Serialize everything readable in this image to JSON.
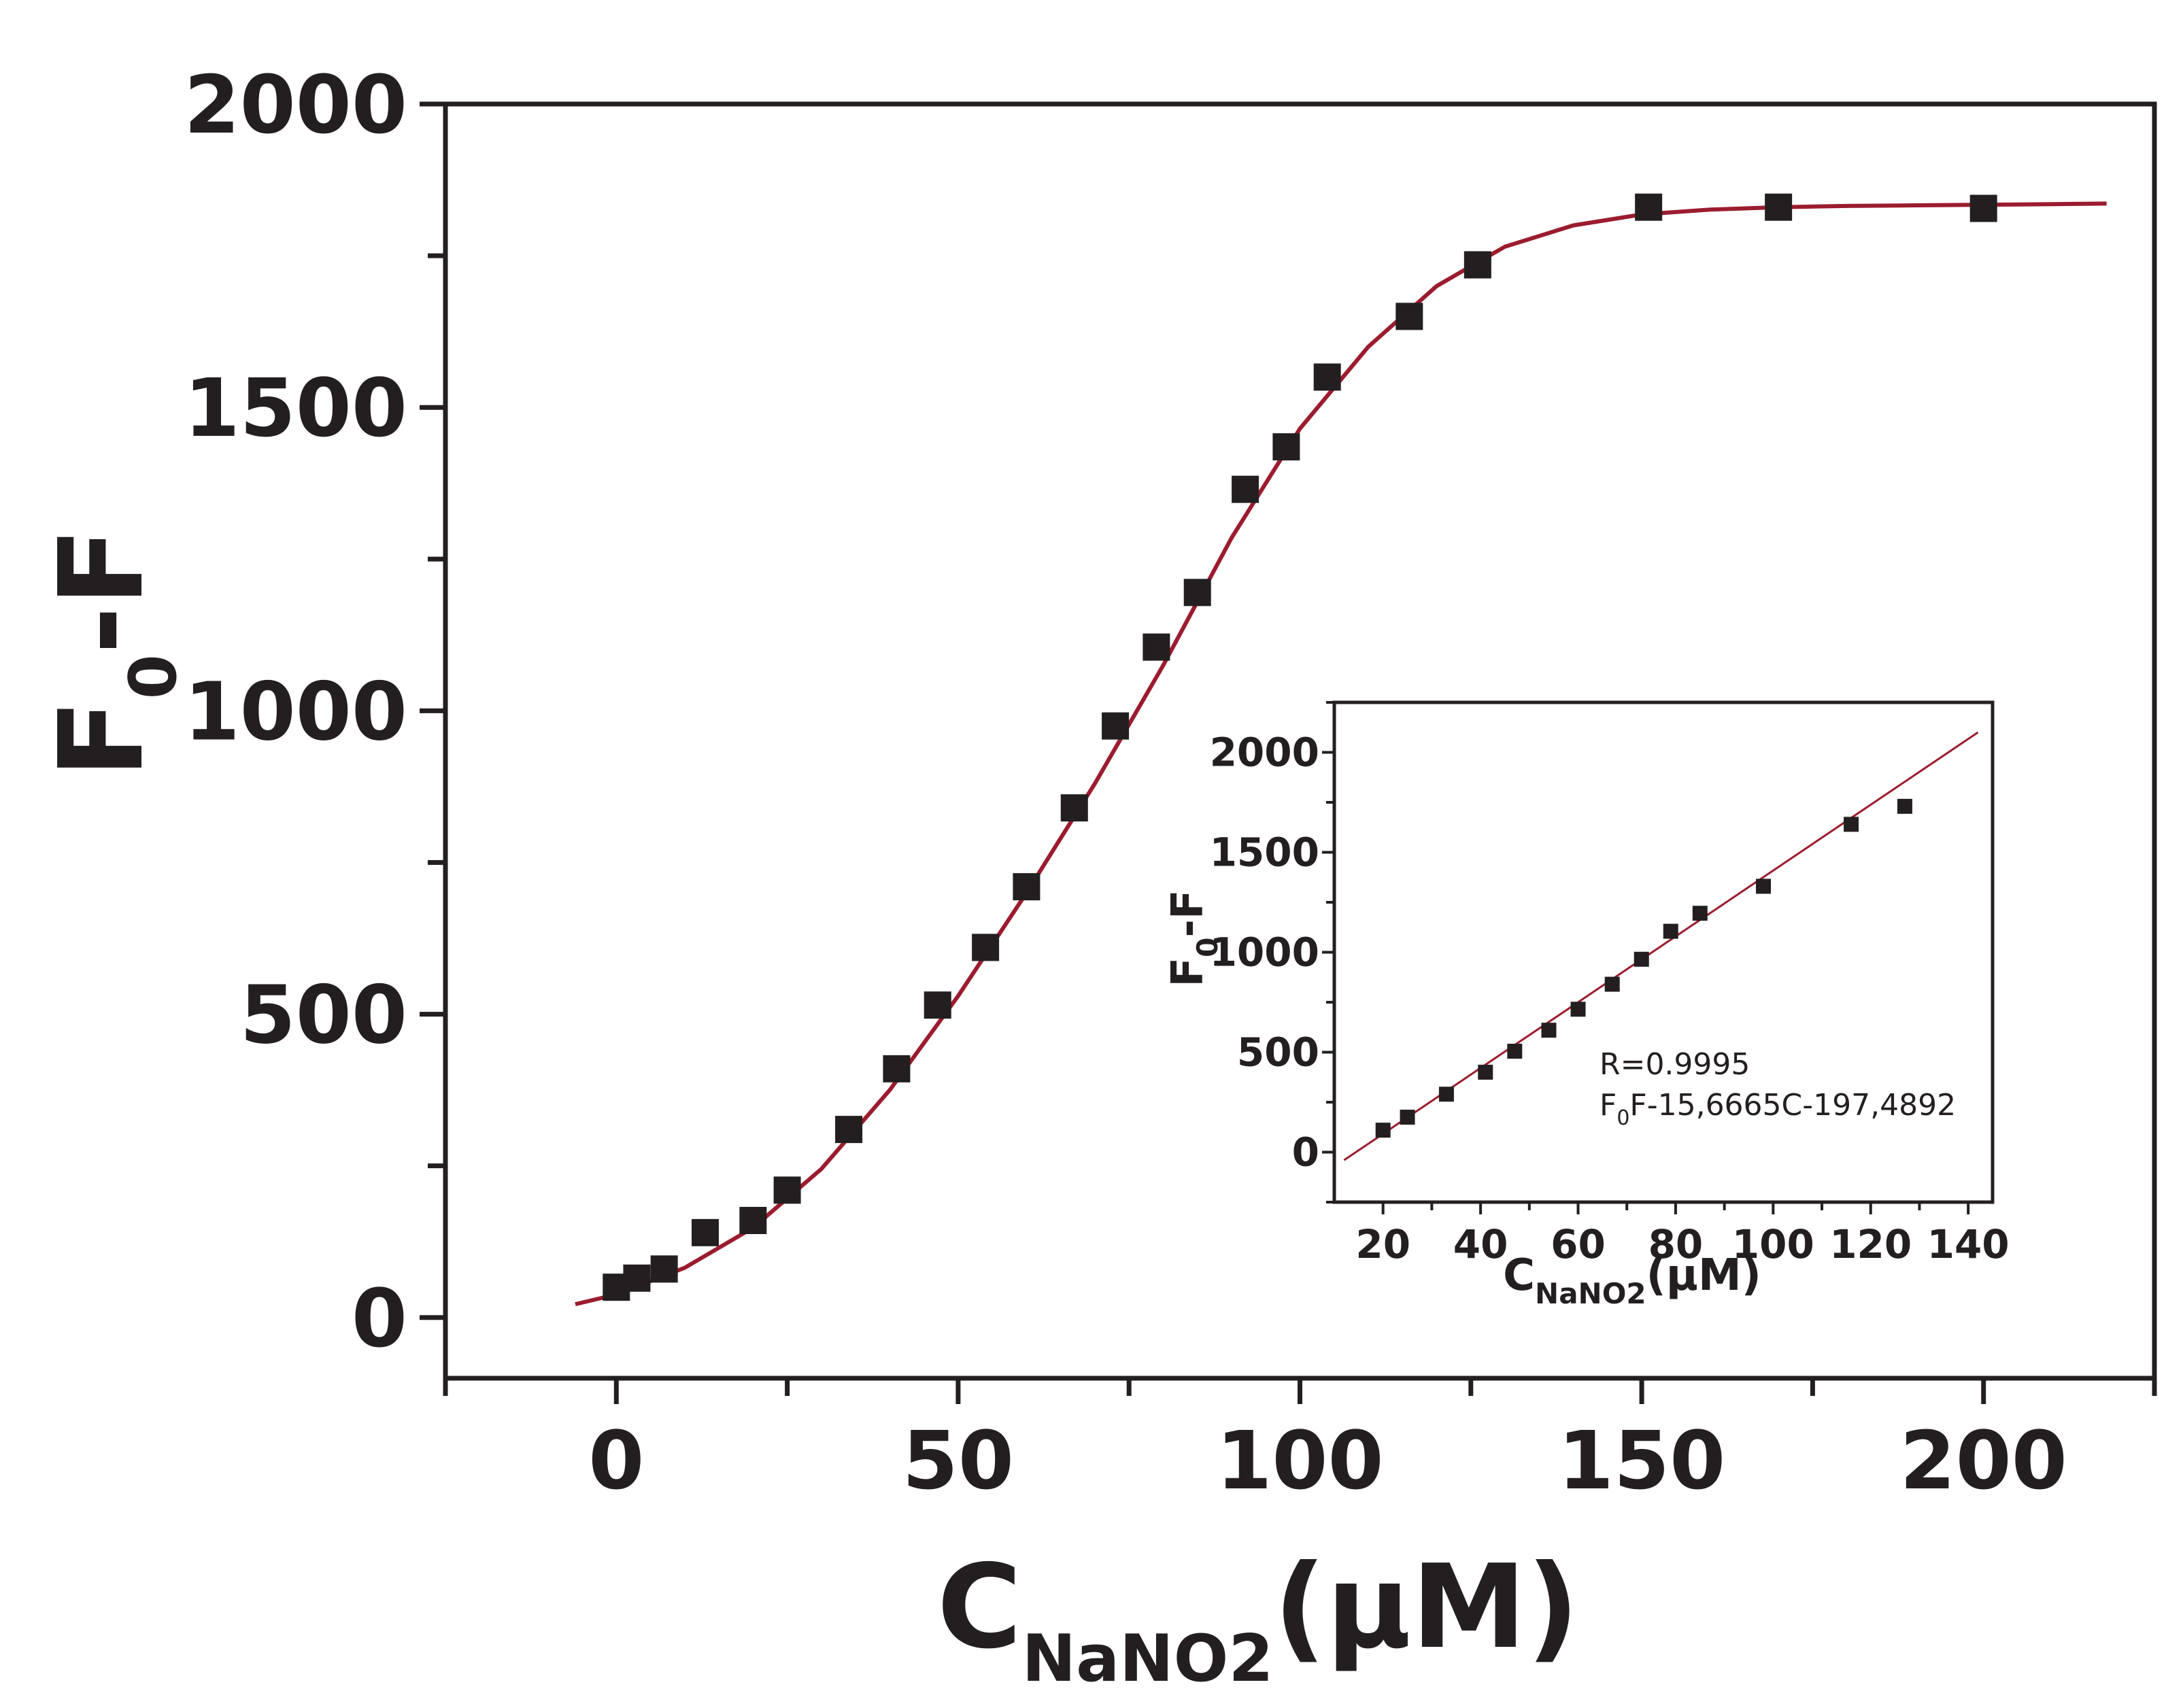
{
  "colors": {
    "axis": "#231f20",
    "marker": "#231f20",
    "fit_line": "#9b1c2e",
    "background": "#ffffff"
  },
  "chart_data": [
    {
      "type": "scatter",
      "role": "main",
      "xlabel": {
        "main": "C",
        "sub": "NaNO2",
        "rest": "(μM)"
      },
      "ylabel": {
        "main": "F",
        "sub": "0",
        "rest": "-F"
      },
      "xlim": [
        -25,
        225
      ],
      "ylim": [
        -100,
        2000
      ],
      "x_ticks": [
        0,
        50,
        100,
        150,
        200
      ],
      "x_minor_ticks": [
        -25,
        25,
        75,
        125,
        175,
        225
      ],
      "y_ticks": [
        0,
        500,
        1000,
        1500,
        2000
      ],
      "y_minor_ticks": [
        250,
        750,
        1250,
        1750
      ],
      "grid": false,
      "marker": "square",
      "points": [
        {
          "x": 0,
          "y": 50
        },
        {
          "x": 3,
          "y": 65
        },
        {
          "x": 7,
          "y": 80
        },
        {
          "x": 13,
          "y": 140
        },
        {
          "x": 20,
          "y": 160
        },
        {
          "x": 25,
          "y": 210
        },
        {
          "x": 34,
          "y": 310
        },
        {
          "x": 41,
          "y": 410
        },
        {
          "x": 47,
          "y": 515
        },
        {
          "x": 54,
          "y": 610
        },
        {
          "x": 60,
          "y": 710
        },
        {
          "x": 67,
          "y": 840
        },
        {
          "x": 73,
          "y": 975
        },
        {
          "x": 79,
          "y": 1105
        },
        {
          "x": 85,
          "y": 1195
        },
        {
          "x": 92,
          "y": 1365
        },
        {
          "x": 98,
          "y": 1435
        },
        {
          "x": 104,
          "y": 1550
        },
        {
          "x": 116,
          "y": 1650
        },
        {
          "x": 126,
          "y": 1735
        },
        {
          "x": 151,
          "y": 1830
        },
        {
          "x": 170,
          "y": 1830
        },
        {
          "x": 200,
          "y": 1828
        }
      ],
      "fit_curve": {
        "type": "sigmoid",
        "x": [
          -6,
          0,
          10,
          20,
          30,
          40,
          50,
          60,
          70,
          80,
          90,
          100,
          110,
          120,
          130,
          140,
          150,
          160,
          170,
          180,
          190,
          200,
          210,
          218
        ],
        "y": [
          22,
          38,
          82,
          148,
          245,
          375,
          530,
          700,
          880,
          1075,
          1285,
          1465,
          1600,
          1700,
          1765,
          1800,
          1818,
          1826,
          1830,
          1832,
          1833,
          1834,
          1835,
          1836
        ]
      }
    },
    {
      "type": "scatter",
      "role": "inset",
      "xlabel": {
        "main": "C",
        "sub": "NaNO2",
        "rest": "(μM)"
      },
      "ylabel": {
        "main": "F",
        "sub": "0",
        "rest": "-F"
      },
      "xlim": [
        10,
        145
      ],
      "ylim": [
        -250,
        2250
      ],
      "x_ticks": [
        20,
        40,
        60,
        80,
        100,
        120,
        140
      ],
      "x_minor_ticks": [
        30,
        50,
        70,
        90,
        110,
        130
      ],
      "y_ticks": [
        0,
        500,
        1000,
        1500,
        2000
      ],
      "y_minor_ticks": [
        -250,
        250,
        750,
        1250,
        1750,
        2250
      ],
      "grid": false,
      "marker": "square",
      "points": [
        {
          "x": 20,
          "y": 110
        },
        {
          "x": 25,
          "y": 175
        },
        {
          "x": 33,
          "y": 290
        },
        {
          "x": 41,
          "y": 400
        },
        {
          "x": 47,
          "y": 505
        },
        {
          "x": 54,
          "y": 610
        },
        {
          "x": 60,
          "y": 715
        },
        {
          "x": 67,
          "y": 840
        },
        {
          "x": 73,
          "y": 965
        },
        {
          "x": 79,
          "y": 1105
        },
        {
          "x": 85,
          "y": 1195
        },
        {
          "x": 98,
          "y": 1330
        },
        {
          "x": 116,
          "y": 1640
        },
        {
          "x": 127,
          "y": 1730
        }
      ],
      "fit_line": {
        "type": "linear",
        "x": [
          12,
          142
        ],
        "y": [
          -40,
          2100
        ]
      },
      "annotations": {
        "r": "R=0.9995",
        "equation_pre": "F",
        "equation_sub": "0",
        "equation_post": "F-15,6665C-197,4892"
      }
    }
  ]
}
